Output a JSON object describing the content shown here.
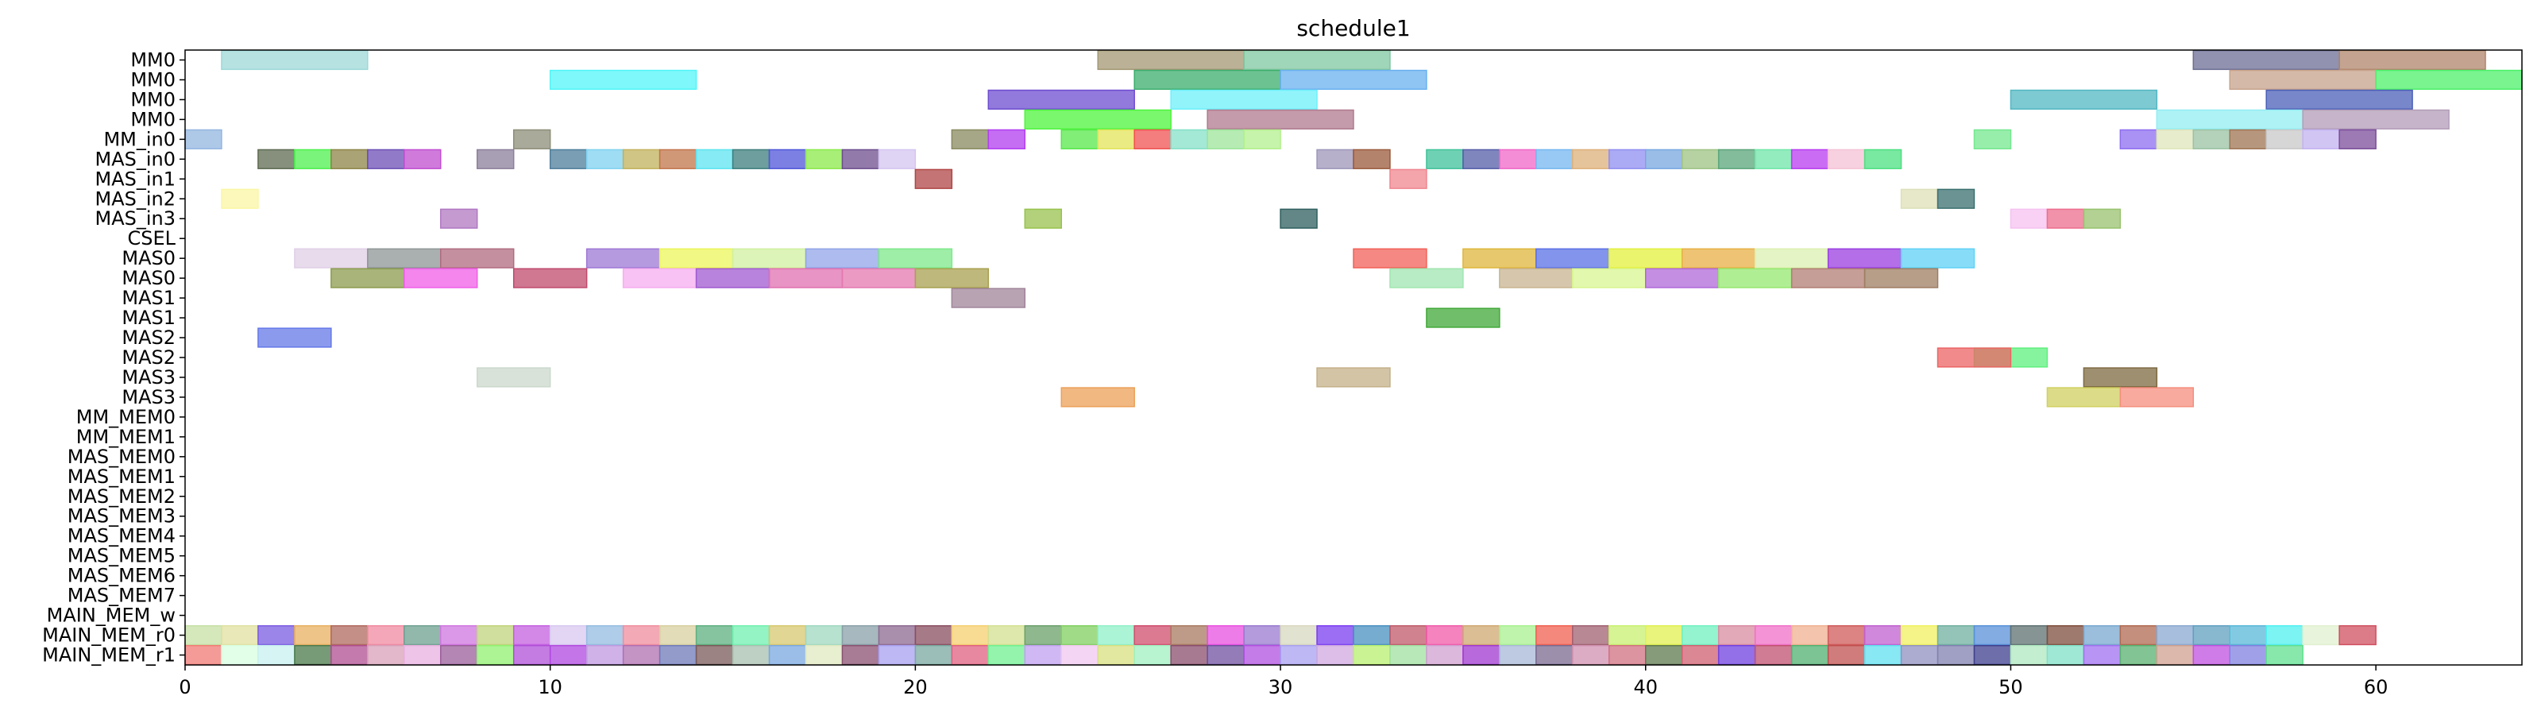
{
  "chart_data": {
    "type": "gantt",
    "title": "schedule1",
    "xlim": [
      0,
      64
    ],
    "x_ticks": [
      0,
      10,
      20,
      30,
      40,
      50,
      60
    ],
    "rows": [
      "MM0",
      "MM0",
      "MM0",
      "MM0",
      "MM_in0",
      "MAS_in0",
      "MAS_in1",
      "MAS_in2",
      "MAS_in3",
      "CSEL",
      "MAS0",
      "MAS0",
      "MAS1",
      "MAS1",
      "MAS2",
      "MAS2",
      "MAS3",
      "MAS3",
      "MM_MEM0",
      "MM_MEM1",
      "MAS_MEM0",
      "MAS_MEM1",
      "MAS_MEM2",
      "MAS_MEM3",
      "MAS_MEM4",
      "MAS_MEM5",
      "MAS_MEM6",
      "MAS_MEM7",
      "MAIN_MEM_w",
      "MAIN_MEM_r0",
      "MAIN_MEM_r1"
    ],
    "tasks": [
      {
        "row": 0,
        "start": 1,
        "end": 5,
        "color": "#9dd8d8"
      },
      {
        "row": 0,
        "start": 25,
        "end": 29,
        "color": "#a39773"
      },
      {
        "row": 0,
        "start": 29,
        "end": 33,
        "color": "#7fc7a0"
      },
      {
        "row": 0,
        "start": 55,
        "end": 59,
        "color": "#6b6e94"
      },
      {
        "row": 0,
        "start": 59,
        "end": 63,
        "color": "#b0856b"
      },
      {
        "row": 1,
        "start": 10,
        "end": 14,
        "color": "#53f5f8"
      },
      {
        "row": 1,
        "start": 26,
        "end": 30,
        "color": "#3cae6d"
      },
      {
        "row": 1,
        "start": 30,
        "end": 34,
        "color": "#69b1ef"
      },
      {
        "row": 1,
        "start": 56,
        "end": 60,
        "color": "#c7a28b"
      },
      {
        "row": 1,
        "start": 60,
        "end": 64,
        "color": "#4cf06a"
      },
      {
        "row": 2,
        "start": 22,
        "end": 26,
        "color": "#6e4cd0"
      },
      {
        "row": 2,
        "start": 27,
        "end": 31,
        "color": "#6ef0fa"
      },
      {
        "row": 2,
        "start": 50,
        "end": 54,
        "color": "#53b8c3"
      },
      {
        "row": 2,
        "start": 57,
        "end": 61,
        "color": "#4b5fb7"
      },
      {
        "row": 3,
        "start": 23,
        "end": 27,
        "color": "#4ff43e"
      },
      {
        "row": 3,
        "start": 28,
        "end": 32,
        "color": "#b07a8e"
      },
      {
        "row": 3,
        "start": 54,
        "end": 58,
        "color": "#93edf2"
      },
      {
        "row": 3,
        "start": 58,
        "end": 62,
        "color": "#b39cb8"
      },
      {
        "row": 4,
        "start": 0,
        "end": 1,
        "color": "#93b5e0"
      },
      {
        "row": 4,
        "start": 9,
        "end": 10,
        "color": "#8e8e7a"
      },
      {
        "row": 4,
        "start": 21,
        "end": 22,
        "color": "#888a5f"
      },
      {
        "row": 4,
        "start": 22,
        "end": 23,
        "color": "#b23ef0"
      },
      {
        "row": 4,
        "start": 24,
        "end": 25,
        "color": "#56e84a"
      },
      {
        "row": 4,
        "start": 25,
        "end": 26,
        "color": "#e3e45a"
      },
      {
        "row": 4,
        "start": 26,
        "end": 27,
        "color": "#f05151"
      },
      {
        "row": 4,
        "start": 27,
        "end": 28,
        "color": "#85e0c8"
      },
      {
        "row": 4,
        "start": 28,
        "end": 29,
        "color": "#9de59a"
      },
      {
        "row": 4,
        "start": 29,
        "end": 30,
        "color": "#b3f08d"
      },
      {
        "row": 4,
        "start": 49,
        "end": 50,
        "color": "#74e88f"
      },
      {
        "row": 4,
        "start": 53,
        "end": 54,
        "color": "#8e6ef0"
      },
      {
        "row": 4,
        "start": 54,
        "end": 55,
        "color": "#dfe5bb"
      },
      {
        "row": 4,
        "start": 55,
        "end": 56,
        "color": "#9bc2a3"
      },
      {
        "row": 4,
        "start": 56,
        "end": 57,
        "color": "#9e7453"
      },
      {
        "row": 4,
        "start": 57,
        "end": 58,
        "color": "#c8c8c8"
      },
      {
        "row": 4,
        "start": 58,
        "end": 59,
        "color": "#c2b1f0"
      },
      {
        "row": 4,
        "start": 59,
        "end": 60,
        "color": "#7c4e9b"
      },
      {
        "row": 5,
        "start": 2,
        "end": 3,
        "color": "#5d6b51"
      },
      {
        "row": 5,
        "start": 3,
        "end": 4,
        "color": "#4df04d"
      },
      {
        "row": 5,
        "start": 4,
        "end": 5,
        "color": "#8d8447"
      },
      {
        "row": 5,
        "start": 5,
        "end": 6,
        "color": "#6c4fb6"
      },
      {
        "row": 5,
        "start": 6,
        "end": 7,
        "color": "#c04fd0"
      },
      {
        "row": 5,
        "start": 8,
        "end": 9,
        "color": "#8c7f9b"
      },
      {
        "row": 5,
        "start": 10,
        "end": 11,
        "color": "#4e7e9b"
      },
      {
        "row": 5,
        "start": 11,
        "end": 12,
        "color": "#7fd2f0"
      },
      {
        "row": 5,
        "start": 12,
        "end": 13,
        "color": "#c2b15c"
      },
      {
        "row": 5,
        "start": 13,
        "end": 14,
        "color": "#c2754b"
      },
      {
        "row": 5,
        "start": 14,
        "end": 15,
        "color": "#5de4f0"
      },
      {
        "row": 5,
        "start": 15,
        "end": 16,
        "color": "#3e7d7d"
      },
      {
        "row": 5,
        "start": 16,
        "end": 17,
        "color": "#5056d9"
      },
      {
        "row": 5,
        "start": 17,
        "end": 18,
        "color": "#8bea4b"
      },
      {
        "row": 5,
        "start": 18,
        "end": 19,
        "color": "#6e4e8e"
      },
      {
        "row": 5,
        "start": 19,
        "end": 20,
        "color": "#d4c5f0"
      },
      {
        "row": 5,
        "start": 31,
        "end": 32,
        "color": "#9d96ba"
      },
      {
        "row": 5,
        "start": 32,
        "end": 33,
        "color": "#9b5a3b"
      },
      {
        "row": 5,
        "start": 34,
        "end": 35,
        "color": "#3fc29a"
      },
      {
        "row": 5,
        "start": 35,
        "end": 36,
        "color": "#545ea8"
      },
      {
        "row": 5,
        "start": 36,
        "end": 37,
        "color": "#f067c8"
      },
      {
        "row": 5,
        "start": 37,
        "end": 38,
        "color": "#75b7f0"
      },
      {
        "row": 5,
        "start": 38,
        "end": 39,
        "color": "#deb07a"
      },
      {
        "row": 5,
        "start": 39,
        "end": 40,
        "color": "#8f8ef0"
      },
      {
        "row": 5,
        "start": 40,
        "end": 41,
        "color": "#78a7e0"
      },
      {
        "row": 5,
        "start": 41,
        "end": 42,
        "color": "#9ec283"
      },
      {
        "row": 5,
        "start": 42,
        "end": 43,
        "color": "#5aa57a"
      },
      {
        "row": 5,
        "start": 43,
        "end": 44,
        "color": "#6fe6a8"
      },
      {
        "row": 5,
        "start": 44,
        "end": 45,
        "color": "#b83cf0"
      },
      {
        "row": 5,
        "start": 45,
        "end": 46,
        "color": "#f5c2d6"
      },
      {
        "row": 5,
        "start": 46,
        "end": 47,
        "color": "#4ce081"
      },
      {
        "row": 6,
        "start": 20,
        "end": 21,
        "color": "#b04545"
      },
      {
        "row": 6,
        "start": 33,
        "end": 34,
        "color": "#f0858f"
      },
      {
        "row": 7,
        "start": 1,
        "end": 2,
        "color": "#fbf6a4"
      },
      {
        "row": 7,
        "start": 47,
        "end": 48,
        "color": "#dde0b7"
      },
      {
        "row": 7,
        "start": 48,
        "end": 49,
        "color": "#3b6f6f"
      },
      {
        "row": 8,
        "start": 7,
        "end": 8,
        "color": "#b078c2"
      },
      {
        "row": 8,
        "start": 23,
        "end": 24,
        "color": "#98c24e"
      },
      {
        "row": 8,
        "start": 30,
        "end": 31,
        "color": "#2f5f5f"
      },
      {
        "row": 8,
        "start": 50,
        "end": 51,
        "color": "#f5c2f0"
      },
      {
        "row": 8,
        "start": 51,
        "end": 52,
        "color": "#ec6e8e"
      },
      {
        "row": 8,
        "start": 52,
        "end": 53,
        "color": "#98c26e"
      },
      {
        "row": 10,
        "start": 3,
        "end": 5,
        "color": "#e0cfe6"
      },
      {
        "row": 10,
        "start": 5,
        "end": 7,
        "color": "#8d9596"
      },
      {
        "row": 10,
        "start": 7,
        "end": 9,
        "color": "#b06b80"
      },
      {
        "row": 10,
        "start": 11,
        "end": 13,
        "color": "#9e78d5"
      },
      {
        "row": 10,
        "start": 13,
        "end": 15,
        "color": "#ecf55a"
      },
      {
        "row": 10,
        "start": 15,
        "end": 17,
        "color": "#d0f0a0"
      },
      {
        "row": 10,
        "start": 17,
        "end": 19,
        "color": "#92a4e8"
      },
      {
        "row": 10,
        "start": 19,
        "end": 21,
        "color": "#7de88a"
      },
      {
        "row": 10,
        "start": 32,
        "end": 34,
        "color": "#f26058"
      },
      {
        "row": 10,
        "start": 35,
        "end": 37,
        "color": "#dfb53b"
      },
      {
        "row": 10,
        "start": 37,
        "end": 39,
        "color": "#5a70e5"
      },
      {
        "row": 10,
        "start": 39,
        "end": 41,
        "color": "#e3f03c"
      },
      {
        "row": 10,
        "start": 41,
        "end": 43,
        "color": "#e8b045"
      },
      {
        "row": 10,
        "start": 43,
        "end": 45,
        "color": "#dcf0b0"
      },
      {
        "row": 10,
        "start": 45,
        "end": 47,
        "color": "#9a3ee0"
      },
      {
        "row": 10,
        "start": 47,
        "end": 49,
        "color": "#5fd2f6"
      },
      {
        "row": 11,
        "start": 4,
        "end": 6,
        "color": "#8b9b4e"
      },
      {
        "row": 11,
        "start": 6,
        "end": 8,
        "color": "#f05ee8"
      },
      {
        "row": 11,
        "start": 9,
        "end": 11,
        "color": "#c04a6e"
      },
      {
        "row": 11,
        "start": 12,
        "end": 14,
        "color": "#f5aef0"
      },
      {
        "row": 11,
        "start": 14,
        "end": 16,
        "color": "#a05ad0"
      },
      {
        "row": 11,
        "start": 16,
        "end": 18,
        "color": "#e070b0"
      },
      {
        "row": 11,
        "start": 18,
        "end": 20,
        "color": "#e478b0"
      },
      {
        "row": 11,
        "start": 20,
        "end": 22,
        "color": "#a8a050"
      },
      {
        "row": 11,
        "start": 33,
        "end": 35,
        "color": "#a0e6b0"
      },
      {
        "row": 11,
        "start": 36,
        "end": 38,
        "color": "#c8b490"
      },
      {
        "row": 11,
        "start": 38,
        "end": 40,
        "color": "#d8f590"
      },
      {
        "row": 11,
        "start": 40,
        "end": 42,
        "color": "#b068d8"
      },
      {
        "row": 11,
        "start": 42,
        "end": 44,
        "color": "#96e870"
      },
      {
        "row": 11,
        "start": 44,
        "end": 46,
        "color": "#b07e74"
      },
      {
        "row": 11,
        "start": 46,
        "end": 48,
        "color": "#9e7e62"
      },
      {
        "row": 12,
        "start": 21,
        "end": 23,
        "color": "#a0849a"
      },
      {
        "row": 13,
        "start": 34,
        "end": 36,
        "color": "#40a838"
      },
      {
        "row": 14,
        "start": 2,
        "end": 4,
        "color": "#6578e8"
      },
      {
        "row": 15,
        "start": 49,
        "end": 51,
        "color": "#5ef07e"
      },
      {
        "row": 15,
        "start": 48,
        "end": 50,
        "color": "#ec6464"
      },
      {
        "row": 16,
        "start": 8,
        "end": 10,
        "color": "#cbd8cc"
      },
      {
        "row": 16,
        "start": 31,
        "end": 33,
        "color": "#c4b088"
      },
      {
        "row": 16,
        "start": 52,
        "end": 54,
        "color": "#7e6a42"
      },
      {
        "row": 17,
        "start": 24,
        "end": 26,
        "color": "#eca058"
      },
      {
        "row": 17,
        "start": 51,
        "end": 53,
        "color": "#d0d060"
      },
      {
        "row": 17,
        "start": 53,
        "end": 55,
        "color": "#f58e7e"
      }
    ],
    "mem_rows": {
      "MAIN_MEM_r0": [
        "#c6e0a4",
        "#e0e0a0",
        "#7a5ce0",
        "#e8b060",
        "#b06a5e",
        "#f08aa0",
        "#6ea090",
        "#d076e0",
        "#c0d47c",
        "#c460e0",
        "#d8c8f0",
        "#94bce0",
        "#f08e9e",
        "#d8d0a0",
        "#5eb080",
        "#70f0b0",
        "#d8c870",
        "#a0d8c0",
        "#8aa0a8",
        "#8e6a90",
        "#8a4e60",
        "#f5d070",
        "#d4e090",
        "#6aa06a",
        "#80d060",
        "#90f0c8",
        "#d04e6e",
        "#a87a60",
        "#e850e0",
        "#9a7ad0",
        "#d8d8c0",
        "#7a3ef0",
        "#4890c0",
        "#c05a6a",
        "#f05aa8",
        "#d0a870",
        "#a8f090",
        "#f06050",
        "#a06070",
        "#c8f070",
        "#e0f050",
        "#70f0c0",
        "#d88ca0",
        "#f070c8",
        "#f0b090",
        "#d05a5a",
        "#c060d0",
        "#f0f060",
        "#70b0a0",
        "#5890d8",
        "#5e7070",
        "#7e4e3e",
        "#78a8d0",
        "#b06a50",
        "#8aa8d0",
        "#60a0c0",
        "#58b8d8",
        "#50f0f0",
        "#e0f0d0",
        "#d05060"
      ],
      "MAIN_MEM_r1": [
        "#f07a74",
        "#d8ffe0",
        "#c8f0f0",
        "#4a7a4a",
        "#b04e90",
        "#d8a0b8",
        "#e8b0e0",
        "#9a5e9a",
        "#90f070",
        "#b050d8",
        "#b048e0",
        "#c098e0",
        "#b070b0",
        "#6e7ab8",
        "#7a5a5a",
        "#a8c0b0",
        "#7aa8e0",
        "#e0e8c0",
        "#8a5070",
        "#a8a0f0",
        "#7aa8a0",
        "#e06080",
        "#70f090",
        "#c0a0f0",
        "#f0c8f0",
        "#d8e080",
        "#a0f0c0",
        "#8a4e6e",
        "#7050a0",
        "#b050e0",
        "#a8a0f0",
        "#d0a8e0",
        "#b8f070",
        "#a0e0a0",
        "#d0a0d0",
        "#a038d0",
        "#a8b8d8",
        "#7a6a90",
        "#d090b0",
        "#d07080",
        "#5e7a4e",
        "#d06070",
        "#7040e0",
        "#c05070",
        "#50b070",
        "#c05050",
        "#60e0f0",
        "#9090c0",
        "#8080b0",
        "#3e3e8e",
        "#b0e8c0",
        "#80e0c8",
        "#a070f0",
        "#5ab070",
        "#d0a090",
        "#c050e0",
        "#8080e0",
        "#60e090"
      ]
    }
  }
}
